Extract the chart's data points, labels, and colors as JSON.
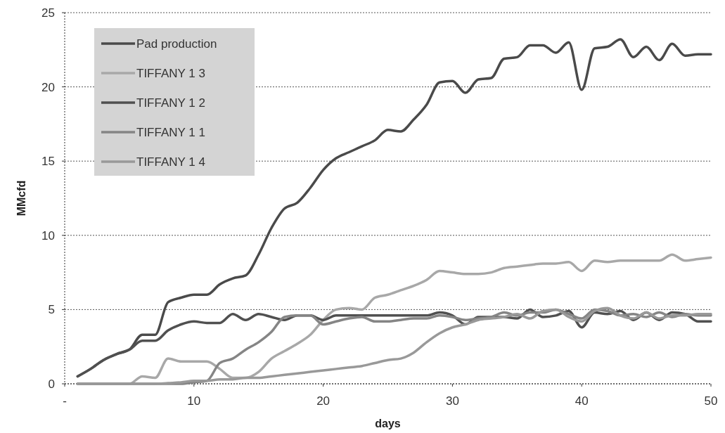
{
  "chart_data": {
    "type": "line",
    "xlabel": "days",
    "ylabel": "MMcfd",
    "x": [
      1,
      2,
      3,
      4,
      5,
      6,
      7,
      8,
      9,
      10,
      11,
      12,
      13,
      14,
      15,
      16,
      17,
      18,
      19,
      20,
      21,
      22,
      23,
      24,
      25,
      26,
      27,
      28,
      29,
      30,
      31,
      32,
      33,
      34,
      35,
      36,
      37,
      38,
      39,
      40,
      41,
      42,
      43,
      44,
      45,
      46,
      47,
      48,
      49,
      50
    ],
    "series": [
      {
        "name": "Pad production",
        "color": "#4a4a4a",
        "values": [
          0.5,
          1.0,
          1.6,
          2.0,
          2.3,
          3.3,
          3.3,
          5.5,
          5.8,
          6.0,
          6.0,
          6.7,
          7.1,
          7.3,
          8.7,
          10.5,
          11.8,
          12.2,
          13.2,
          14.4,
          15.2,
          15.6,
          16.0,
          16.4,
          17.1,
          17.0,
          17.8,
          18.8,
          20.3,
          20.4,
          19.6,
          20.5,
          20.6,
          21.9,
          22.0,
          22.8,
          22.8,
          22.3,
          23.0,
          19.8,
          22.6,
          22.7,
          23.2,
          22.0,
          22.7,
          21.8,
          22.9,
          22.1,
          22.2,
          22.2
        ]
      },
      {
        "name": "TIFFANY 1 3",
        "color": "#a8a8a8",
        "values": [
          0,
          0,
          0,
          0,
          0,
          0.5,
          0.4,
          1.7,
          1.5,
          1.5,
          1.5,
          1.0,
          0.4,
          0.4,
          0.8,
          1.7,
          2.2,
          2.7,
          3.3,
          4.3,
          5.0,
          5.1,
          5.0,
          5.8,
          6.0,
          6.3,
          6.6,
          7.0,
          7.6,
          7.5,
          7.4,
          7.4,
          7.5,
          7.8,
          7.9,
          8.0,
          8.1,
          8.1,
          8.2,
          7.6,
          8.3,
          8.2,
          8.3,
          8.3,
          8.3,
          8.3,
          8.7,
          8.3,
          8.4,
          8.5
        ]
      },
      {
        "name": "TIFFANY 1 2",
        "color": "#505050",
        "values": [
          0.5,
          1.0,
          1.6,
          2.0,
          2.3,
          2.9,
          2.9,
          3.6,
          4.0,
          4.2,
          4.1,
          4.1,
          4.7,
          4.3,
          4.7,
          4.5,
          4.3,
          4.6,
          4.6,
          4.3,
          4.6,
          4.6,
          4.6,
          4.6,
          4.6,
          4.6,
          4.6,
          4.6,
          4.8,
          4.6,
          4.0,
          4.5,
          4.5,
          4.5,
          4.4,
          5.0,
          4.5,
          4.6,
          4.9,
          3.8,
          4.8,
          4.7,
          4.9,
          4.3,
          4.8,
          4.3,
          4.8,
          4.7,
          4.2,
          4.2
        ]
      },
      {
        "name": "TIFFANY 1 1",
        "color": "#858585",
        "values": [
          0,
          0,
          0,
          0,
          0,
          0,
          0,
          0,
          0,
          0.1,
          0.2,
          1.4,
          1.7,
          2.3,
          2.8,
          3.5,
          4.5,
          4.6,
          4.6,
          4.0,
          4.2,
          4.4,
          4.5,
          4.2,
          4.2,
          4.3,
          4.4,
          4.4,
          4.6,
          4.5,
          4.3,
          4.4,
          4.5,
          4.8,
          4.6,
          4.8,
          4.8,
          5.0,
          4.7,
          4.4,
          5.0,
          4.9,
          4.6,
          4.7,
          4.5,
          4.8,
          4.5,
          4.7,
          4.6,
          4.6
        ]
      },
      {
        "name": "TIFFANY 1 4",
        "color": "#999999",
        "values": [
          0,
          0,
          0,
          0,
          0,
          0,
          0,
          0.05,
          0.1,
          0.2,
          0.2,
          0.3,
          0.3,
          0.4,
          0.4,
          0.5,
          0.6,
          0.7,
          0.8,
          0.9,
          1.0,
          1.1,
          1.2,
          1.4,
          1.6,
          1.7,
          2.1,
          2.8,
          3.4,
          3.8,
          4.0,
          4.3,
          4.4,
          4.5,
          4.7,
          4.4,
          4.9,
          5.0,
          4.5,
          4.2,
          4.9,
          5.1,
          4.6,
          4.4,
          4.8,
          4.4,
          4.6,
          4.6,
          4.7,
          4.7
        ]
      }
    ],
    "xlim": [
      0,
      50
    ],
    "xticks": [
      {
        "value": 0,
        "label": "-"
      },
      10,
      20,
      30,
      40,
      50
    ],
    "ylim": [
      0,
      25
    ],
    "yticks": [
      0,
      5,
      10,
      15,
      20,
      25
    ],
    "grid": "y",
    "legend": "top left",
    "line_style": "solid",
    "marker": "none"
  }
}
